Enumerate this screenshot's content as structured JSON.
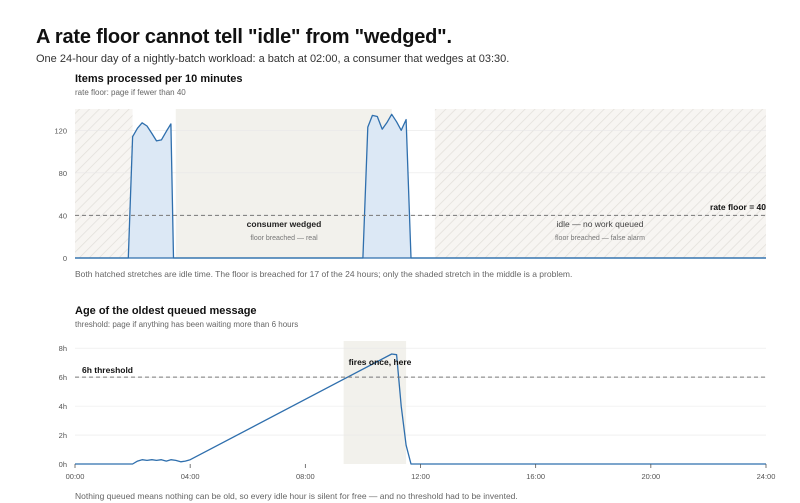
{
  "page": {
    "title": "A rate floor cannot tell \"idle\" from \"wedged\".",
    "subtitle": "One 24-hour day of a nightly-batch workload: a batch at 02:00, a consumer that wedges at 03:30."
  },
  "colors": {
    "line": "#2f6fad",
    "fill": "#dce8f5",
    "hatch_bg": "#f7f5f2",
    "hatch_line": "#e2dfda",
    "shaded": "#f2f1ec",
    "dashed": "#777777",
    "grid": "#e8e8e8",
    "axis": "#555555"
  },
  "charts": {
    "rate": {
      "title": "Items processed per 10 minutes",
      "subtitle": "rate floor: page if fewer than 40",
      "caption": "Both hatched stretches are idle time. The floor is breached for 17 of the 24 hours; only the shaded stretch in the middle is a problem.",
      "threshold_label": "rate floor = 40",
      "wedged_label": "consumer wedged",
      "wedged_sub": "floor breached — real",
      "idle_label": "idle — no work queued",
      "idle_sub": "floor breached — false alarm",
      "y_ticks": [
        "0",
        "40",
        "80",
        "120"
      ]
    },
    "age": {
      "title": "Age of the oldest queued message",
      "subtitle": "threshold: page if anything has been waiting more than 6 hours",
      "caption": "Nothing queued means nothing can be old, so every idle hour is silent for free — and no threshold had to be invented.",
      "threshold_label": "6h threshold",
      "fires_label": "fires once, here",
      "y_ticks": [
        "0h",
        "2h",
        "4h",
        "6h",
        "8h"
      ],
      "x_ticks": [
        "00:00",
        "04:00",
        "08:00",
        "12:00",
        "16:00",
        "20:00",
        "24:00"
      ]
    }
  },
  "chart_data": [
    {
      "type": "area",
      "title": "Items processed per 10 minutes",
      "xlabel": "",
      "ylabel": "",
      "x_unit": "hours",
      "xlim": [
        0,
        24
      ],
      "ylim": [
        0,
        140
      ],
      "threshold": 40,
      "regions": [
        {
          "kind": "hatched",
          "from": 0,
          "to": 2.0
        },
        {
          "kind": "shaded",
          "from": 3.5,
          "to": 11.0
        },
        {
          "kind": "hatched",
          "from": 12.5,
          "to": 24
        }
      ],
      "x": [
        0,
        1.85,
        2.0,
        2.17,
        2.33,
        2.5,
        2.67,
        2.83,
        3.0,
        3.17,
        3.33,
        3.42,
        10.0,
        10.17,
        10.33,
        10.5,
        10.67,
        10.83,
        11.0,
        11.17,
        11.33,
        11.5,
        11.67,
        11.83,
        12.0,
        12.17,
        24
      ],
      "values": [
        0,
        0,
        114,
        122,
        127,
        124,
        117,
        110,
        111,
        119,
        126,
        0,
        0,
        123,
        134,
        133,
        121,
        127,
        135,
        128,
        120,
        130,
        0,
        0,
        0,
        0,
        0
      ]
    },
    {
      "type": "line",
      "title": "Age of the oldest queued message",
      "xlabel": "",
      "ylabel": "",
      "x_unit": "hours",
      "xlim": [
        0,
        24
      ],
      "ylim": [
        0,
        8.5
      ],
      "threshold": 6,
      "shaded_region": {
        "from": 9.33,
        "to": 11.5
      },
      "x": [
        0,
        2.0,
        2.17,
        2.33,
        2.5,
        2.67,
        2.83,
        3.0,
        3.17,
        3.33,
        3.5,
        3.67,
        3.83,
        4.0,
        11.0,
        11.17,
        11.33,
        11.5,
        11.67,
        11.83,
        24
      ],
      "values": [
        0,
        0,
        0.2,
        0.3,
        0.25,
        0.3,
        0.25,
        0.3,
        0.2,
        0.3,
        0.25,
        0.15,
        0.2,
        0.3,
        7.6,
        7.55,
        4.0,
        1.3,
        0,
        0,
        0
      ]
    }
  ]
}
